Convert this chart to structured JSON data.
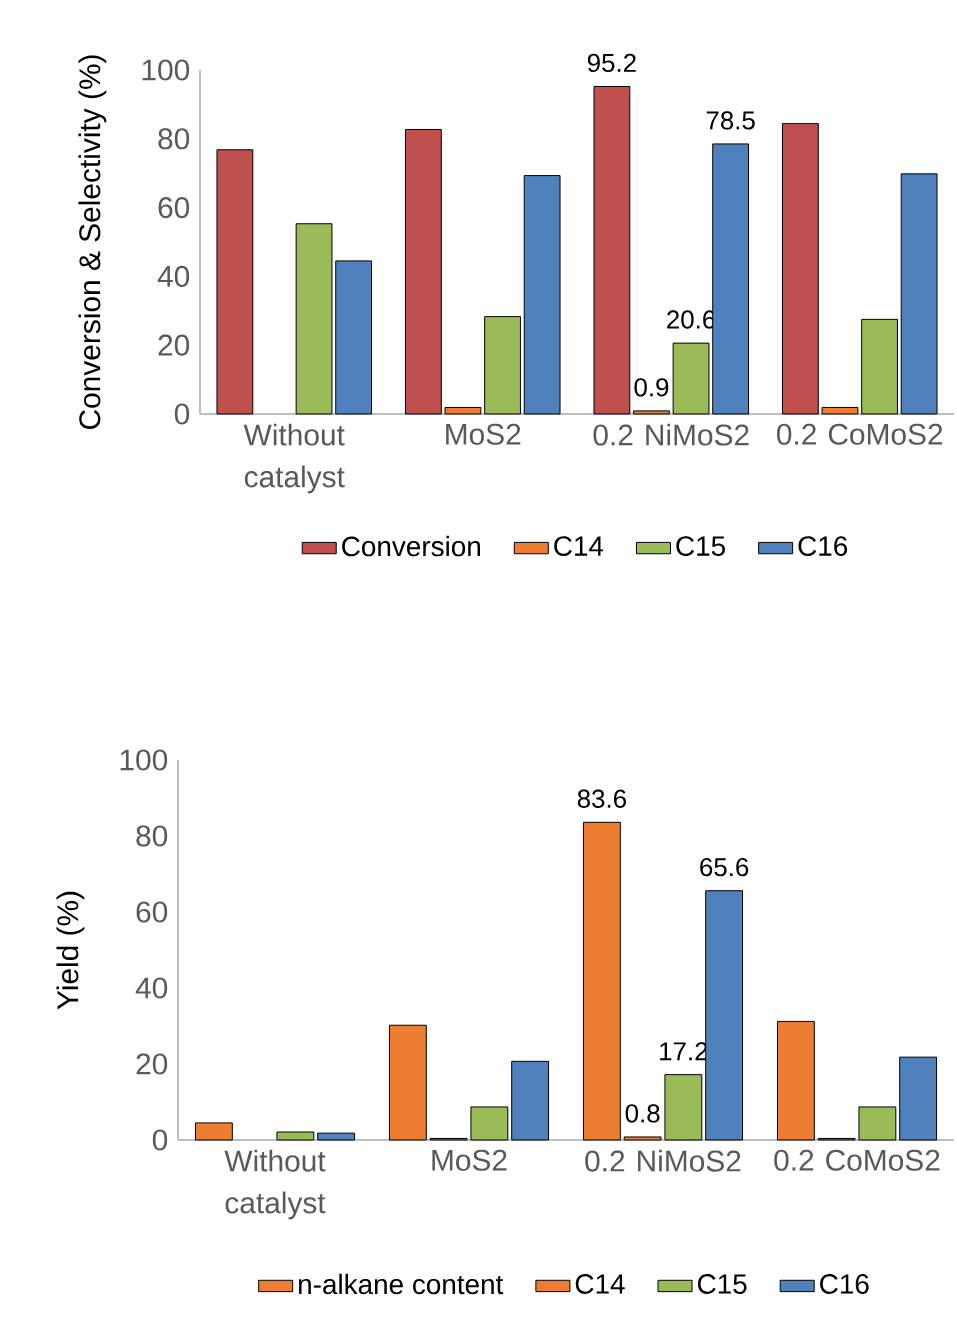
{
  "chart_data": [
    {
      "type": "bar",
      "ylabel": "Conversion & Selectivity (%)",
      "categories": [
        "Without catalyst",
        "MoS2",
        "0.2 NiMoS2",
        "0.2 CoMoS2"
      ],
      "ylim": [
        0,
        100
      ],
      "yticks": [
        0,
        20,
        40,
        60,
        80,
        100
      ],
      "legend": "bottom",
      "grid": false,
      "series": [
        {
          "name": "Conversion",
          "color": "#c0504d",
          "values": [
            76.8,
            82.7,
            95.2,
            84.4
          ],
          "value_labels": [
            null,
            null,
            "95.2",
            null
          ]
        },
        {
          "name": "C14",
          "color": "#ed7d31",
          "values": [
            null,
            1.9,
            0.9,
            1.9
          ],
          "value_labels": [
            null,
            null,
            "0.9",
            null
          ]
        },
        {
          "name": "C15",
          "color": "#9bbb59",
          "values": [
            55.3,
            28.3,
            20.6,
            27.5
          ],
          "value_labels": [
            null,
            null,
            "20.6",
            null
          ]
        },
        {
          "name": "C16",
          "color": "#4f81bd",
          "values": [
            44.5,
            69.3,
            78.5,
            69.8
          ],
          "value_labels": [
            null,
            null,
            "78.5",
            null
          ]
        }
      ]
    },
    {
      "type": "bar",
      "ylabel": "Yield (%)",
      "categories": [
        "Without catalyst",
        "MoS2",
        "0.2 NiMoS2",
        "0.2 CoMoS2"
      ],
      "ylim": [
        0,
        100
      ],
      "yticks": [
        0,
        20,
        40,
        60,
        80,
        100
      ],
      "legend": "bottom",
      "grid": false,
      "series": [
        {
          "name": "n-alkane content",
          "color": "#ed7d31",
          "values": [
            4.5,
            30.2,
            83.6,
            31.2
          ],
          "value_labels": [
            null,
            null,
            "83.6",
            null
          ]
        },
        {
          "name": "C14",
          "color": "#ed7d31",
          "values": [
            null,
            0.4,
            0.8,
            0.4
          ],
          "value_labels": [
            null,
            null,
            "0.8",
            null
          ]
        },
        {
          "name": "C15",
          "color": "#9bbb59",
          "values": [
            2.1,
            8.7,
            17.2,
            8.7
          ],
          "value_labels": [
            null,
            null,
            "17.2",
            null
          ]
        },
        {
          "name": "C16",
          "color": "#4f81bd",
          "values": [
            1.8,
            20.7,
            65.6,
            21.8
          ],
          "value_labels": [
            null,
            null,
            "65.6",
            null
          ]
        }
      ]
    }
  ]
}
